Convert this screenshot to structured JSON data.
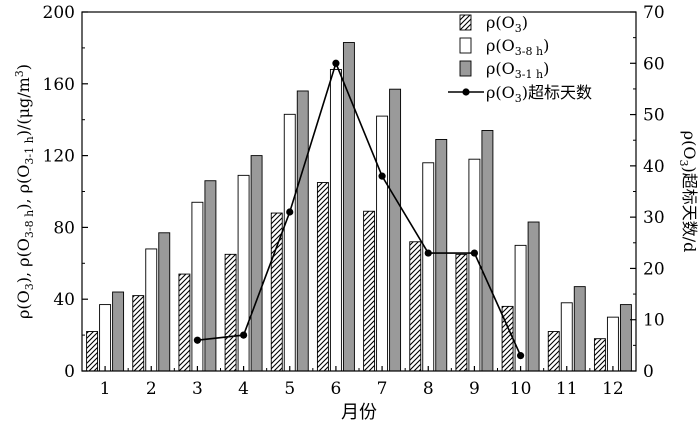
{
  "chart_data": {
    "type": "bar",
    "categories": [
      "1",
      "2",
      "3",
      "4",
      "5",
      "6",
      "7",
      "8",
      "9",
      "10",
      "11",
      "12"
    ],
    "xlabel": "月份",
    "ylabel": "ρ(O3), ρ(O3-8 h), ρ(O3-1 h)/(μg/m3)",
    "y2label": "ρ(O3)超标天数/d",
    "ylim": [
      0,
      200
    ],
    "y2lim": [
      0,
      70
    ],
    "yticks": [
      0,
      40,
      80,
      120,
      160,
      200
    ],
    "y2ticks": [
      0,
      10,
      20,
      30,
      40,
      50,
      60,
      70
    ],
    "legend_position": "top-right",
    "series": [
      {
        "name": "ρ(O3)",
        "kind": "bar",
        "pattern": "hatched",
        "values": [
          22,
          42,
          54,
          65,
          88,
          105,
          89,
          72,
          65,
          36,
          22,
          18
        ]
      },
      {
        "name": "ρ(O3-8 h)",
        "kind": "bar",
        "pattern": "white",
        "values": [
          37,
          68,
          94,
          109,
          143,
          168,
          142,
          116,
          118,
          70,
          38,
          30
        ]
      },
      {
        "name": "ρ(O3-1 h)",
        "kind": "bar",
        "pattern": "gray",
        "values": [
          44,
          77,
          106,
          120,
          156,
          183,
          157,
          129,
          134,
          83,
          47,
          37
        ]
      },
      {
        "name": "ρ(O3)超标天数",
        "kind": "line",
        "axis": "right",
        "x": [
          "3",
          "4",
          "5",
          "6",
          "7",
          "8",
          "9",
          "10"
        ],
        "values": [
          6,
          7,
          31,
          60,
          38,
          23,
          23,
          3
        ]
      }
    ],
    "colors": {
      "gray_bar": "#9a9a9a",
      "line": "#000000"
    }
  }
}
